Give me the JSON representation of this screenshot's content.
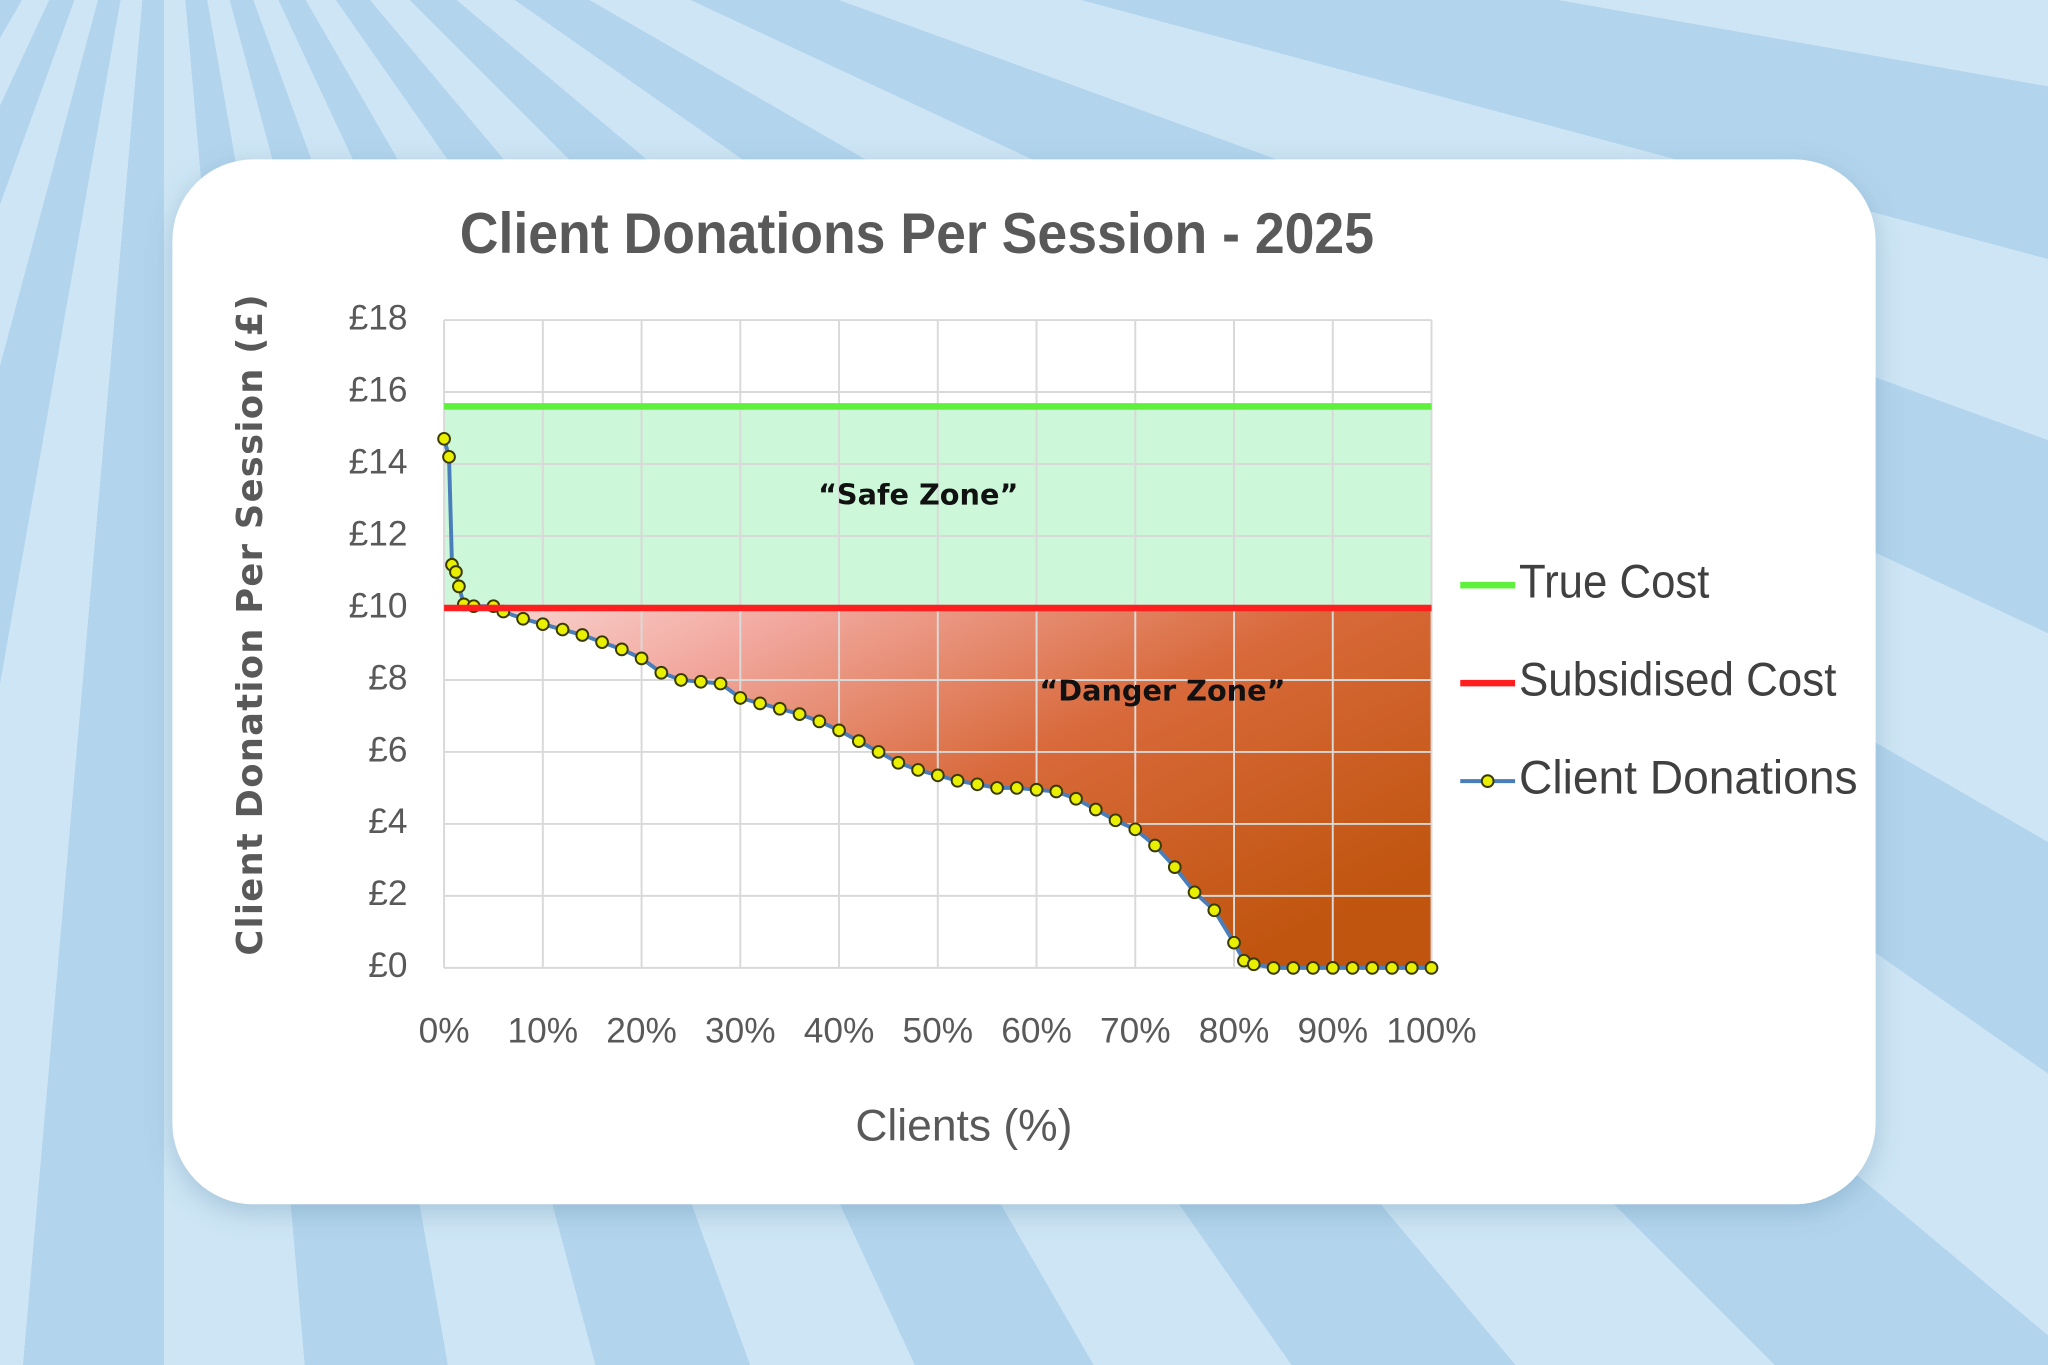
{
  "chart_data": {
    "type": "line",
    "title": "Client Donations Per Session - 2025",
    "x_label": "Clients (%)",
    "y_label": "Client Donation Per Session (£)",
    "xlim": [
      0,
      100
    ],
    "ylim": [
      0,
      18
    ],
    "xticks": [
      {
        "value": 0,
        "label": "0%"
      },
      {
        "value": 10,
        "label": "10%"
      },
      {
        "value": 20,
        "label": "20%"
      },
      {
        "value": 30,
        "label": "30%"
      },
      {
        "value": 40,
        "label": "40%"
      },
      {
        "value": 50,
        "label": "50%"
      },
      {
        "value": 60,
        "label": "60%"
      },
      {
        "value": 70,
        "label": "70%"
      },
      {
        "value": 80,
        "label": "80%"
      },
      {
        "value": 90,
        "label": "90%"
      },
      {
        "value": 100,
        "label": "100%"
      }
    ],
    "yticks": [
      {
        "value": 0,
        "label": "£0"
      },
      {
        "value": 2,
        "label": "£2"
      },
      {
        "value": 4,
        "label": "£4"
      },
      {
        "value": 6,
        "label": "£6"
      },
      {
        "value": 8,
        "label": "£8"
      },
      {
        "value": 10,
        "label": "£10"
      },
      {
        "value": 12,
        "label": "£12"
      },
      {
        "value": 14,
        "label": "£14"
      },
      {
        "value": 16,
        "label": "£16"
      },
      {
        "value": 18,
        "label": "£18"
      }
    ],
    "grid": true,
    "legend": "right",
    "series": [
      {
        "name": "True Cost",
        "color": "#5ef03c",
        "x": [
          0,
          100
        ],
        "values": [
          15.6,
          15.6
        ]
      },
      {
        "name": "Subsidised Cost",
        "color": "#ff1f1f",
        "x": [
          0,
          100
        ],
        "values": [
          10,
          10
        ]
      },
      {
        "name": "Client Donations",
        "color": "#4a7ebb",
        "marker_color": "#e8f000",
        "x": [
          0,
          0.5,
          0.8,
          1.2,
          1.5,
          2,
          3,
          5,
          6,
          8,
          10,
          12,
          14,
          16,
          18,
          20,
          22,
          24,
          26,
          28,
          30,
          32,
          34,
          36,
          38,
          40,
          42,
          44,
          46,
          48,
          50,
          52,
          54,
          56,
          58,
          60,
          62,
          64,
          66,
          68,
          70,
          72,
          74,
          76,
          78,
          80,
          81,
          82,
          84,
          86,
          88,
          90,
          92,
          94,
          96,
          98,
          100
        ],
        "values": [
          14.7,
          14.2,
          11.2,
          11.0,
          10.6,
          10.1,
          10.05,
          10.05,
          9.9,
          9.7,
          9.55,
          9.4,
          9.25,
          9.05,
          8.85,
          8.6,
          8.2,
          8.0,
          7.95,
          7.9,
          7.5,
          7.35,
          7.2,
          7.05,
          6.85,
          6.6,
          6.3,
          6.0,
          5.7,
          5.5,
          5.35,
          5.2,
          5.1,
          5.0,
          5.0,
          4.95,
          4.9,
          4.7,
          4.4,
          4.1,
          3.85,
          3.4,
          2.8,
          2.1,
          1.6,
          0.7,
          0.2,
          0.1,
          0,
          0,
          0,
          0,
          0,
          0,
          0,
          0,
          0
        ]
      }
    ],
    "annotations": [
      {
        "text": "“Safe Zone”"
      },
      {
        "text": "“Danger Zone”"
      }
    ]
  }
}
